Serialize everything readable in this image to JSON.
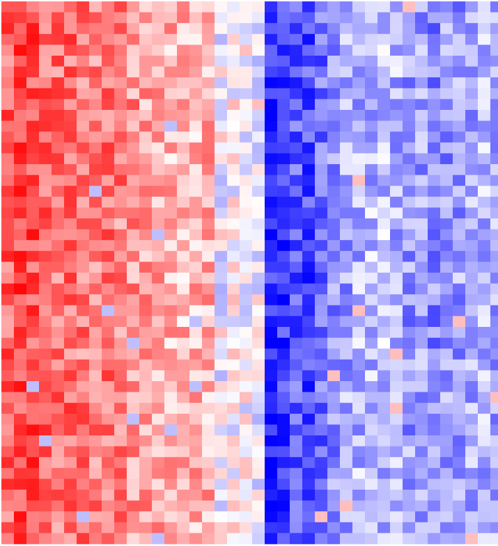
{
  "chart_data": {
    "type": "heatmap",
    "title": "",
    "xlabel": "",
    "ylabel": "",
    "x_categories": [],
    "y_categories": [],
    "n_rows": 50,
    "n_cols": 40,
    "value_range": [
      -1,
      1
    ],
    "legend": "none",
    "colormap": {
      "low": "#0000ff",
      "mid": "#ffffff",
      "high": "#ff0000"
    },
    "grid": false,
    "column_profile": [
      0.6,
      0.7,
      0.68,
      0.58,
      0.55,
      0.57,
      0.52,
      0.5,
      0.55,
      0.5,
      0.42,
      0.38,
      0.35,
      0.3,
      0.28,
      0.3,
      0.32,
      -0.05,
      0.02,
      0.0,
      -0.05,
      -0.85,
      -0.78,
      -0.65,
      -0.7,
      -0.55,
      -0.45,
      -0.35,
      -0.3,
      -0.28,
      -0.25,
      -0.3,
      -0.4,
      -0.35,
      -0.45,
      -0.4,
      -0.38,
      -0.35,
      -0.3,
      -0.32
    ]
  }
}
